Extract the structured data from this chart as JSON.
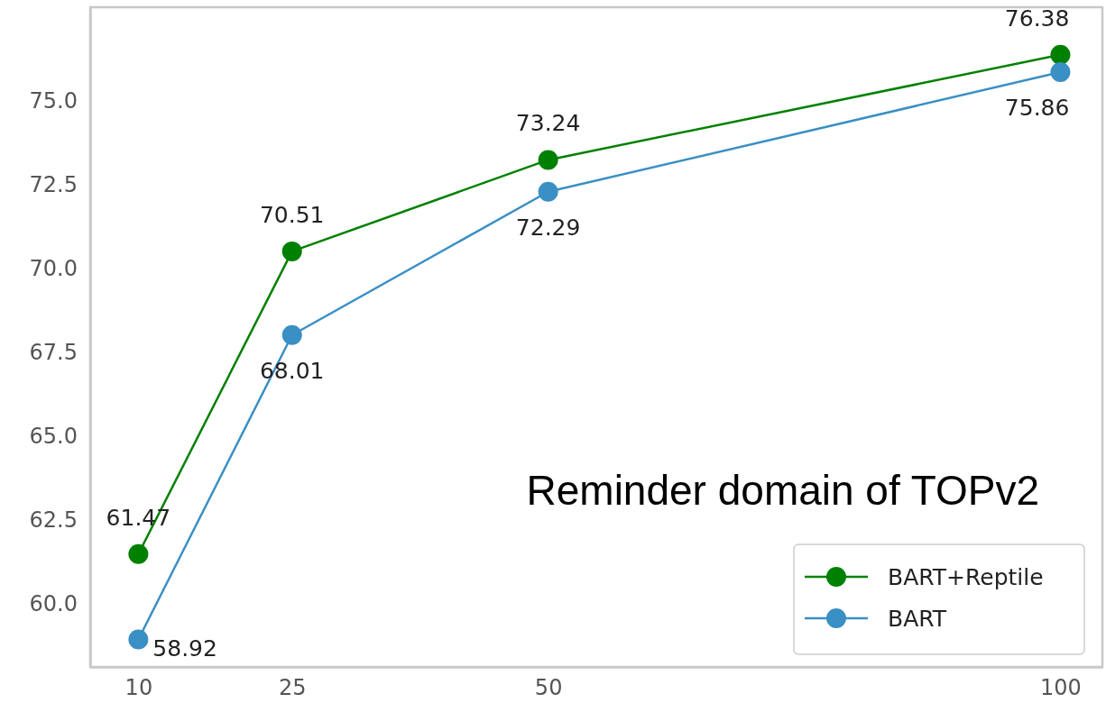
{
  "chart_data": {
    "type": "line",
    "x": [
      10,
      25,
      50,
      100
    ],
    "series": [
      {
        "name": "BART+Reptile",
        "color": "#008000",
        "values": [
          61.47,
          70.51,
          73.24,
          76.38
        ]
      },
      {
        "name": "BART",
        "color": "#3a8fc4",
        "values": [
          58.92,
          68.01,
          72.29,
          75.86
        ]
      }
    ],
    "xlim": [
      5.3,
      104.1
    ],
    "xticks": [
      10,
      25,
      50,
      100
    ],
    "ylim": [
      58.1,
      77.8
    ],
    "yticks": [
      {
        "value": 60,
        "label": "60.0"
      },
      {
        "value": 62.5,
        "label": "62.5"
      },
      {
        "value": 65,
        "label": "65.0"
      },
      {
        "value": 67.5,
        "label": "67.5"
      },
      {
        "value": 70,
        "label": "70.0"
      },
      {
        "value": 72.5,
        "label": "72.5"
      },
      {
        "value": 75,
        "label": "75.0"
      }
    ],
    "annotations": [
      "Reminder domain of TOPv2"
    ],
    "data_labels": true,
    "marker": "circle",
    "line_style": "solid",
    "legend": "bottom right",
    "grid": false
  }
}
